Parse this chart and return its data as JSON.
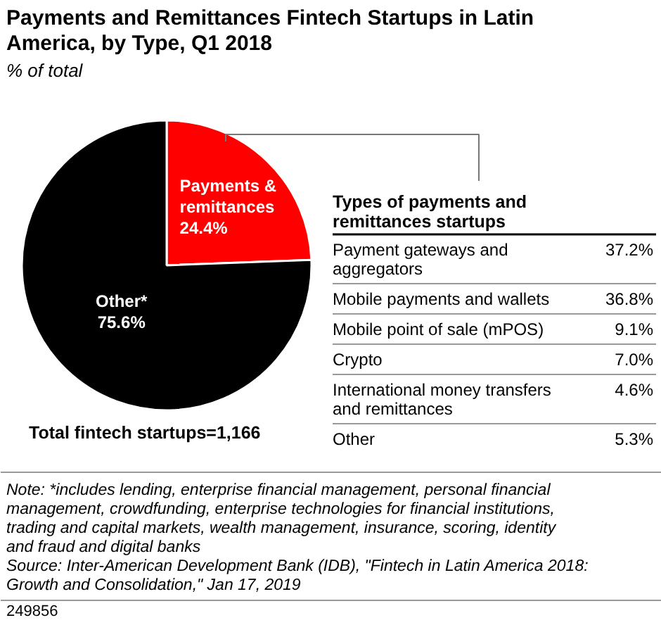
{
  "chart_data": [
    {
      "type": "pie",
      "title": "Payments and Remittances Fintech Startups in Latin America, by Type, Q1 2018",
      "subtitle": "% of total",
      "categories": [
        "Payments & remittances",
        "Other*"
      ],
      "values": [
        24.4,
        75.6
      ],
      "colors": [
        "#ff0000",
        "#000000"
      ],
      "value_labels": [
        "24.4%",
        "75.6%"
      ],
      "annotations": [
        "Total fintech startups=1,166",
        "Note: *includes lending, enterprise financial management, personal financial management, crowdfunding, enterprise technologies for financial institutions, trading and capital markets, wealth management, insurance, scoring, identity and fraud and digital banks",
        "Source: Inter-American Development Bank (IDB), \"Fintech in Latin America 2018: Growth and Consolidation,\" Jan 17, 2019",
        "249856"
      ]
    },
    {
      "type": "other",
      "title": "Types of payments and remittances startups",
      "categories": [
        "Payment gateways and aggregators",
        "Mobile payments and wallets",
        "Mobile point of sale (mPOS)",
        "Crypto",
        "International money transfers and remittances",
        "Other"
      ],
      "value_labels": [
        "37.2%",
        "36.8%",
        "9.1%",
        "7.0%",
        "4.6%",
        "5.3%"
      ]
    }
  ]
}
